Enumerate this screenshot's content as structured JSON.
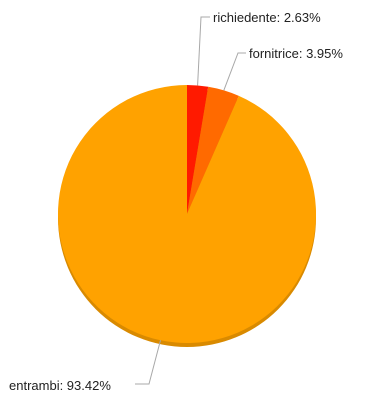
{
  "chart_data": {
    "type": "pie",
    "slices": [
      {
        "label": "richiedente",
        "value": 2.63,
        "display": "richiedente: 2.63%",
        "color": "#ff1a00"
      },
      {
        "label": "fornitrice",
        "value": 3.95,
        "display": "fornitrice: 3.95%",
        "color": "#ff6a00"
      },
      {
        "label": "entrambi",
        "value": 93.42,
        "display": "entrambi: 93.42%",
        "color": "#ffa200"
      }
    ],
    "start": "12 o'clock",
    "direction": "clockwise",
    "legend": "none"
  }
}
